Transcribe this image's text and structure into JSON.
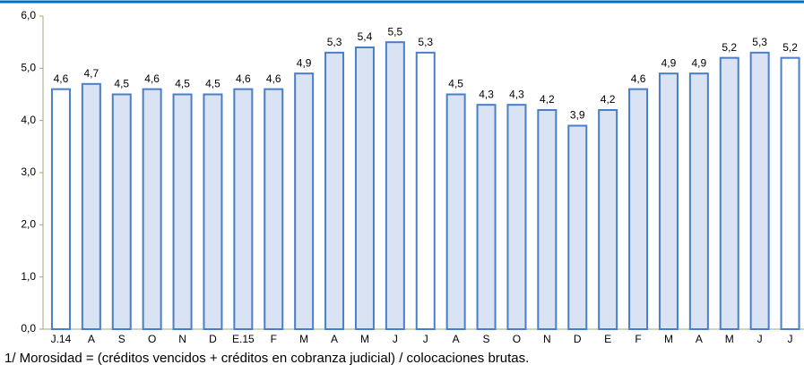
{
  "chart_data": {
    "type": "bar",
    "categories": [
      "J.14",
      "A",
      "S",
      "O",
      "N",
      "D",
      "E.15",
      "F",
      "M",
      "A",
      "M",
      "J",
      "J",
      "A",
      "S",
      "O",
      "N",
      "D",
      "E",
      "F",
      "M",
      "A",
      "M",
      "J",
      "J"
    ],
    "values": [
      4.6,
      4.7,
      4.5,
      4.6,
      4.5,
      4.5,
      4.6,
      4.6,
      4.9,
      5.3,
      5.4,
      5.5,
      5.3,
      4.5,
      4.3,
      4.3,
      4.2,
      3.9,
      4.2,
      4.6,
      4.9,
      4.9,
      5.2,
      5.3,
      5.2
    ],
    "value_labels": [
      "4,6",
      "4,7",
      "4,5",
      "4,6",
      "4,5",
      "4,5",
      "4,6",
      "4,6",
      "4,9",
      "5,3",
      "5,4",
      "5,5",
      "5,3",
      "4,5",
      "4,3",
      "4,3",
      "4,2",
      "3,9",
      "4,2",
      "4,6",
      "4,9",
      "4,9",
      "5,2",
      "5,3",
      "5,2"
    ],
    "colors": [
      "#ffffff",
      "#dae3f3",
      "#dae3f3",
      "#dae3f3",
      "#dae3f3",
      "#dae3f3",
      "#dae3f3",
      "#dae3f3",
      "#dae3f3",
      "#dae3f3",
      "#dae3f3",
      "#dae3f3",
      "#ffffff",
      "#dae3f3",
      "#dae3f3",
      "#dae3f3",
      "#dae3f3",
      "#dae3f3",
      "#dae3f3",
      "#dae3f3",
      "#dae3f3",
      "#dae3f3",
      "#dae3f3",
      "#dae3f3",
      "#ffffff"
    ],
    "edge_color": "#4a7ec8",
    "ylim": [
      0,
      6
    ],
    "yticks": [
      {
        "value": 0,
        "label": "0,0"
      },
      {
        "value": 1,
        "label": "1,0"
      },
      {
        "value": 2,
        "label": "2,0"
      },
      {
        "value": 3,
        "label": "3,0"
      },
      {
        "value": 4,
        "label": "4,0"
      },
      {
        "value": 5,
        "label": "5,0"
      },
      {
        "value": 6,
        "label": "6,0"
      }
    ],
    "footnote": "1/ Morosidad = (créditos vencidos + créditos en cobranza judicial) / colocaciones brutas."
  }
}
